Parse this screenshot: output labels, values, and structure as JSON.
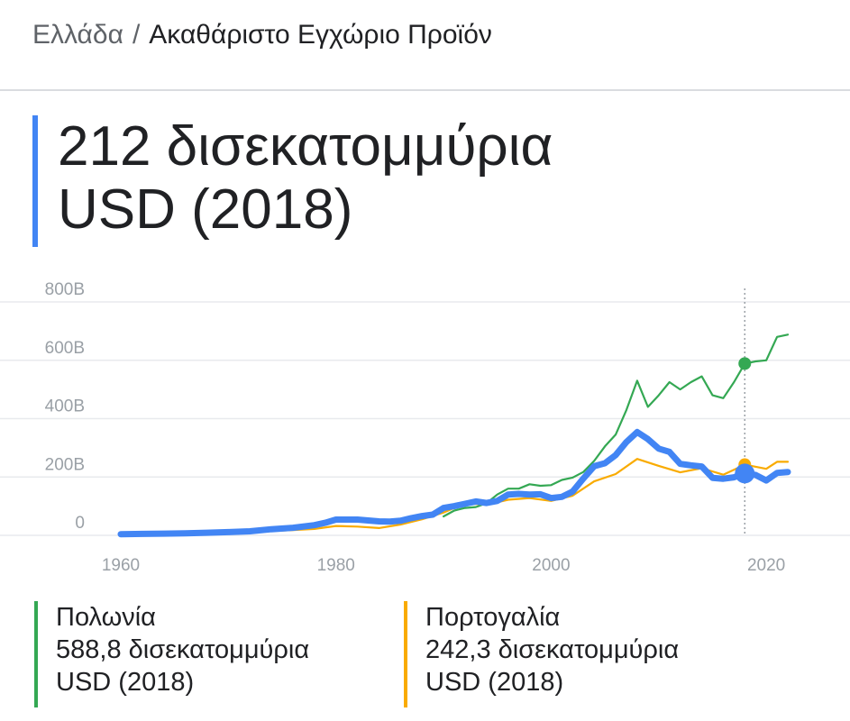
{
  "header": {
    "country": "Ελλάδα",
    "separator": "/",
    "metric": "Ακαθάριστο Εγχώριο Προϊόν"
  },
  "headline": {
    "line1": "212 δισεκατομμύρια",
    "line2": "USD (2018)"
  },
  "legend": {
    "poland": {
      "name": "Πολωνία",
      "value": "588,8 δισεκατομμύρια",
      "unit": "USD (2018)",
      "color": "#34a853"
    },
    "portugal": {
      "name": "Πορτογαλία",
      "value": "242,3 δισεκατομμύρια",
      "unit": "USD (2018)",
      "color": "#f9ab00"
    }
  },
  "chart_data": {
    "type": "line",
    "title": "",
    "xlabel": "",
    "ylabel": "",
    "xlim": [
      1960,
      2022
    ],
    "ylim": [
      0,
      800
    ],
    "grid": true,
    "x_ticks": [
      {
        "value": 1960,
        "label": "1960"
      },
      {
        "value": 1980,
        "label": "1980"
      },
      {
        "value": 2000,
        "label": "2000"
      },
      {
        "value": 2020,
        "label": "2020"
      }
    ],
    "y_ticks": [
      {
        "value": 0,
        "label": "0"
      },
      {
        "value": 200,
        "label": "200B"
      },
      {
        "value": 400,
        "label": "400B"
      },
      {
        "value": 600,
        "label": "600B"
      },
      {
        "value": 800,
        "label": "800B"
      }
    ],
    "highlight_year": 2018,
    "series": [
      {
        "name": "Πολωνία",
        "color": "#34a853",
        "highlight_value": 588.8,
        "x": [
          1990,
          1991,
          1992,
          1993,
          1994,
          1995,
          1996,
          1997,
          1998,
          1999,
          2000,
          2001,
          2002,
          2003,
          2004,
          2005,
          2006,
          2007,
          2008,
          2009,
          2010,
          2011,
          2012,
          2013,
          2014,
          2015,
          2016,
          2017,
          2018,
          2019,
          2020,
          2021,
          2022
        ],
        "values": [
          65,
          85,
          94,
          97,
          110,
          140,
          160,
          160,
          175,
          170,
          172,
          190,
          198,
          217,
          255,
          305,
          345,
          430,
          530,
          440,
          480,
          525,
          500,
          525,
          545,
          480,
          470,
          525,
          588.8,
          596,
          600,
          680,
          688
        ]
      },
      {
        "name": "Πορτογαλία",
        "color": "#f9ab00",
        "highlight_value": 242.3,
        "x": [
          1960,
          1962,
          1964,
          1966,
          1968,
          1970,
          1972,
          1974,
          1976,
          1978,
          1980,
          1982,
          1984,
          1986,
          1988,
          1990,
          1992,
          1994,
          1996,
          1998,
          2000,
          2002,
          2004,
          2006,
          2008,
          2010,
          2012,
          2014,
          2016,
          2018,
          2020,
          2021,
          2022
        ],
        "values": [
          3,
          4,
          4,
          5,
          6,
          8,
          10,
          15,
          18,
          22,
          32,
          30,
          25,
          37,
          55,
          78,
          110,
          105,
          122,
          128,
          118,
          136,
          185,
          210,
          262,
          238,
          216,
          230,
          208,
          242.3,
          228,
          252,
          252
        ]
      },
      {
        "name": "Ελλάδα",
        "color": "#4285f4",
        "highlight_value": 212,
        "x": [
          1960,
          1962,
          1964,
          1966,
          1968,
          1970,
          1972,
          1974,
          1976,
          1978,
          1979,
          1980,
          1981,
          1982,
          1983,
          1984,
          1985,
          1986,
          1987,
          1988,
          1989,
          1990,
          1991,
          1992,
          1993,
          1994,
          1995,
          1996,
          1997,
          1998,
          1999,
          2000,
          2001,
          2002,
          2003,
          2004,
          2005,
          2006,
          2007,
          2008,
          2009,
          2010,
          2011,
          2012,
          2013,
          2014,
          2015,
          2016,
          2017,
          2018,
          2019,
          2020,
          2021,
          2022
        ],
        "values": [
          4,
          5,
          6,
          7,
          9,
          11,
          14,
          21,
          26,
          35,
          43,
          54,
          54,
          54,
          51,
          48,
          47,
          50,
          59,
          66,
          71,
          94,
          100,
          108,
          116,
          111,
          118,
          140,
          142,
          140,
          141,
          128,
          132,
          150,
          195,
          237,
          247,
          275,
          320,
          354,
          330,
          297,
          286,
          245,
          240,
          236,
          197,
          194,
          199,
          212,
          207,
          188,
          214,
          217
        ]
      }
    ]
  }
}
